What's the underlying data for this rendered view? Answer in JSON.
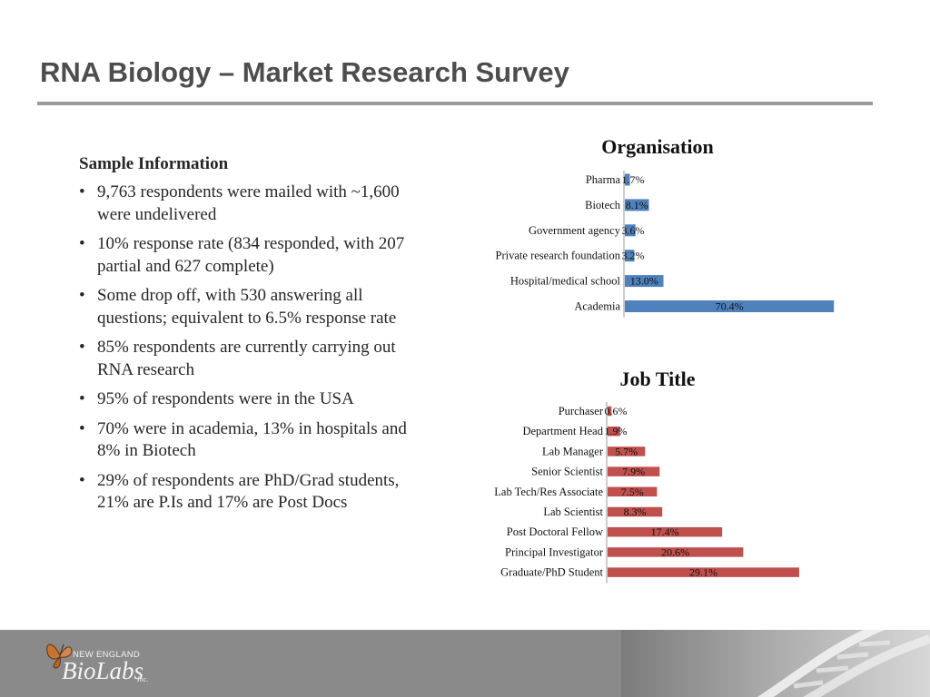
{
  "slide": {
    "title": "RNA Biology – Market Research Survey"
  },
  "sample_info": {
    "heading": "Sample Information",
    "bullet_char": "•",
    "bullets": [
      "9,763 respondents were mailed with ~1,600 were undelivered",
      "10% response rate (834 responded, with 207 partial and 627 complete)",
      "Some drop off, with 530 answering all questions; equivalent to 6.5% response rate",
      "85% respondents are currently carrying out RNA research",
      "95% of respondents were in the USA",
      "70% were in academia, 13% in hospitals and 8% in Biotech",
      "29% of respondents are PhD/Grad students, 21% are P.Is and 17% are Post Docs"
    ]
  },
  "footer": {
    "logo_line1": "NEW ENGLAND",
    "logo_line2": "BioLabs",
    "logo_suffix": "Inc."
  },
  "chart_data": [
    {
      "type": "bar",
      "orientation": "horizontal",
      "title": "Organisation",
      "color": "#4f81bd",
      "categories": [
        "Pharma",
        "Biotech",
        "Government agency",
        "Private research foundation",
        "Hospital/medical school",
        "Academia"
      ],
      "values": [
        1.7,
        8.1,
        3.6,
        3.2,
        13.0,
        70.4
      ],
      "labels": [
        "1.7%",
        "8.1%",
        "3.6%",
        "3.2%",
        "13.0%",
        "70.4%"
      ],
      "unit": "%"
    },
    {
      "type": "bar",
      "orientation": "horizontal",
      "title": "Job Title",
      "color": "#c0504d",
      "categories": [
        "Purchaser",
        "Department Head",
        "Lab Manager",
        "Senior Scientist",
        "Lab Tech/Res Associate",
        "Lab Scientist",
        "Post Doctoral Fellow",
        "Principal Investigator",
        "Graduate/PhD Student"
      ],
      "values": [
        0.6,
        1.9,
        5.7,
        7.9,
        7.5,
        8.3,
        17.4,
        20.6,
        29.1
      ],
      "labels": [
        "0.6%",
        "1.9%",
        "5.7%",
        "7.9%",
        "7.5%",
        "8.3%",
        "17.4%",
        "20.6%",
        "29.1%"
      ],
      "unit": "%"
    }
  ]
}
